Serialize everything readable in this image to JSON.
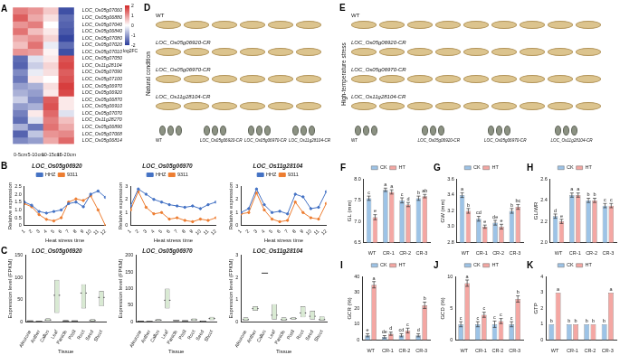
{
  "chart_data": [
    {
      "type": "heatmap",
      "panel": "A",
      "x": [
        "0-5cm",
        "5-10cm",
        "10-15cm",
        "15-20cm"
      ],
      "y": [
        "LOC_Os05g07060",
        "LOC_Os05g06880",
        "LOC_Os05g07040",
        "LOC_Os05g06840",
        "LOC_Os05g07080",
        "LOC_Os05g07020",
        "LOC_Os05g07010",
        "LOC_Os05g07050",
        "LOC_Os11g28104",
        "LOC_Os05g07090",
        "LOC_Os05g07100",
        "LOC_Os05g06970",
        "LOC_Os05g06920",
        "LOC_Os05g06870",
        "LOC_Os05g06910",
        "LOC_Os05g07070",
        "LOC_Os11g28270",
        "LOC_Os05g06890",
        "LOC_Os05g07068",
        "LOC_Os05g06814"
      ],
      "cells": [
        [
          1.2,
          1.0,
          0.5,
          -1.8
        ],
        [
          1.5,
          0.8,
          0.3,
          -1.5
        ],
        [
          1.0,
          1.2,
          0,
          -1.6
        ],
        [
          1.3,
          0.6,
          0.2,
          -1.7
        ],
        [
          0.8,
          1.0,
          0.4,
          -1.9
        ],
        [
          0.6,
          1.3,
          -0.2,
          -1.5
        ],
        [
          1.0,
          0.9,
          0.1,
          -1.8
        ],
        [
          -1.5,
          -0.3,
          0.2,
          1.6
        ],
        [
          -1.6,
          -0.5,
          0.4,
          1.7
        ],
        [
          -1.2,
          -0.2,
          0.3,
          1.5
        ],
        [
          -1.4,
          0.2,
          0,
          1.6
        ],
        [
          -1.0,
          -0.8,
          0.3,
          1.8
        ],
        [
          -0.8,
          -1.0,
          0.2,
          1.7
        ],
        [
          -0.5,
          -1.2,
          1.5,
          0.2
        ],
        [
          -1.0,
          -0.8,
          1.6,
          0.2
        ],
        [
          -1.3,
          0.2,
          1.4,
          -0.3
        ],
        [
          -1.5,
          -0.3,
          1.2,
          0.6
        ],
        [
          -0.8,
          -1.4,
          1.3,
          0.8
        ],
        [
          -1.6,
          -0.6,
          1.0,
          1.1
        ],
        [
          -1.2,
          -1.0,
          0.8,
          1.4
        ]
      ],
      "colorbar": {
        "range": [
          -2,
          2
        ],
        "ticks": [
          2,
          1,
          0,
          -1,
          -2
        ],
        "label": "log2FC"
      }
    },
    {
      "type": "line",
      "panel": "B",
      "title": "LOC_Os05g06920",
      "x_label": "Heat stress time",
      "y_label": "Relative expression",
      "x": [
        1,
        2,
        3,
        4,
        5,
        6,
        7,
        8,
        9,
        10,
        11,
        12
      ],
      "xlim": [
        1,
        12
      ],
      "xticks": [
        1,
        2,
        3,
        4,
        5,
        6,
        7,
        8,
        9,
        10,
        11,
        12
      ],
      "ylim": [
        0,
        2.5
      ],
      "yticks": [
        0,
        0.5,
        {
          "value": 1,
          "label": "1.0"
        },
        1.5,
        {
          "value": 2,
          "label": "2.0"
        },
        2.5
      ],
      "grid": false,
      "legend": "top",
      "series": [
        {
          "name": "HHZ",
          "color": "#4472c4",
          "marker": "circle",
          "values": [
            1.5,
            1.3,
            0.9,
            0.8,
            0.9,
            1.0,
            1.4,
            1.5,
            1.2,
            2.0,
            2.2,
            1.8
          ]
        },
        {
          "name": "9311",
          "color": "#ed7d31",
          "marker": "circle",
          "values": [
            1.4,
            1.2,
            0.7,
            0.4,
            0.3,
            0.5,
            1.5,
            1.7,
            1.6,
            1.9,
            1.0,
            0.0
          ]
        }
      ]
    },
    {
      "type": "line",
      "title": "LOC_Os05g06970",
      "x_label": "Heat stress time",
      "y_label": "Relative expression",
      "x": [
        1,
        2,
        3,
        4,
        5,
        6,
        7,
        8,
        9,
        10,
        11,
        12
      ],
      "xlim": [
        1,
        12
      ],
      "xticks": [
        1,
        2,
        3,
        4,
        5,
        6,
        7,
        8,
        9,
        10,
        11,
        12
      ],
      "ylim": [
        0,
        3
      ],
      "yticks": [
        0,
        1,
        2,
        3
      ],
      "grid": false,
      "legend": "top",
      "series": [
        {
          "name": "HHZ",
          "color": "#4472c4",
          "marker": "circle",
          "values": [
            1.5,
            2.8,
            2.4,
            2.0,
            1.8,
            1.6,
            1.5,
            1.4,
            1.5,
            1.3,
            1.6,
            1.8
          ]
        },
        {
          "name": "9311",
          "color": "#ed7d31",
          "marker": "circle",
          "values": [
            1.2,
            2.6,
            1.4,
            0.9,
            1.0,
            0.5,
            0.6,
            0.4,
            0.3,
            0.5,
            0.4,
            0.6
          ]
        }
      ]
    },
    {
      "type": "line",
      "title": "LOC_Os11g28104",
      "x_label": "Heat stress time",
      "y_label": "Relative expression",
      "x": [
        1,
        2,
        3,
        4,
        5,
        6,
        7,
        8,
        9,
        10,
        11,
        12
      ],
      "xlim": [
        1,
        12
      ],
      "xticks": [
        1,
        2,
        3,
        4,
        5,
        6,
        7,
        8,
        9,
        10,
        11,
        12
      ],
      "ylim": [
        0,
        3
      ],
      "yticks": [
        0,
        1,
        2,
        3
      ],
      "grid": false,
      "legend": "top",
      "series": [
        {
          "name": "HHZ",
          "color": "#4472c4",
          "marker": "circle",
          "values": [
            1.0,
            1.3,
            2.8,
            1.6,
            1.0,
            1.1,
            0.9,
            2.4,
            2.2,
            1.3,
            1.4,
            2.6
          ]
        },
        {
          "name": "9311",
          "color": "#ed7d31",
          "marker": "circle",
          "values": [
            0.9,
            1.0,
            2.5,
            1.2,
            0.5,
            0.3,
            0.4,
            1.8,
            1.0,
            0.6,
            0.5,
            1.7
          ]
        }
      ]
    },
    {
      "type": "boxplot",
      "panel": "C",
      "title": "LOC_Os05g06920",
      "x_label": "Tissue",
      "y_label": "Expression level (FPKM)",
      "categories": [
        "Aleurone",
        "Anther",
        "Callus",
        "Leaf",
        "Panicle",
        "Pistil",
        "Root",
        "Seed",
        "Shoot"
      ],
      "q1": [
        1,
        0,
        2,
        20,
        1,
        1,
        30,
        1,
        35
      ],
      "median": [
        2,
        1,
        4,
        60,
        2,
        2,
        65,
        3,
        55
      ],
      "q3": [
        3,
        2,
        8,
        95,
        4,
        3,
        85,
        6,
        70
      ],
      "ylim": [
        0,
        150
      ],
      "yticks": [
        0,
        50,
        100,
        150
      ],
      "grid": false,
      "color": "#d9ead3"
    },
    {
      "type": "boxplot",
      "title": "LOC_Os05g06970",
      "x_label": "Tissue",
      "y_label": "Expression level (FPKM)",
      "categories": [
        "Aleurone",
        "Anther",
        "Callus",
        "Leaf",
        "Panicle",
        "Pistil",
        "Root",
        "Seed",
        "Shoot"
      ],
      "q1": [
        1,
        0,
        3,
        40,
        2,
        2,
        3,
        1,
        5
      ],
      "median": [
        2,
        1,
        5,
        65,
        4,
        3,
        6,
        2,
        10
      ],
      "q3": [
        3,
        2,
        8,
        100,
        6,
        5,
        10,
        4,
        15
      ],
      "ylim": [
        0,
        200
      ],
      "yticks": [
        0,
        50,
        100,
        150,
        200
      ],
      "grid": false,
      "color": "#d9ead3"
    },
    {
      "type": "boxplot",
      "title": "LOC_Os11g28104",
      "x_label": "Tissue",
      "y_label": "Expression level (FPKM)",
      "categories": [
        "Aleurone",
        "Anther",
        "Callus",
        "Leaf",
        "Panicle",
        "Pistil",
        "Root",
        "Seed",
        "Shoot"
      ],
      "q1": [
        0.05,
        0.5,
        2.2,
        0.1,
        0.05,
        0.1,
        0.2,
        0.1,
        0.05
      ],
      "median": [
        0.1,
        0.6,
        2.2,
        0.3,
        0.1,
        0.15,
        0.4,
        0.25,
        0.1
      ],
      "q3": [
        0.2,
        0.7,
        2.2,
        0.8,
        0.2,
        0.2,
        0.7,
        0.5,
        0.25
      ],
      "ylim": [
        0,
        3
      ],
      "yticks": [
        0,
        1,
        2,
        3
      ],
      "grid": false,
      "color": "#d9ead3"
    },
    {
      "type": "bar",
      "panel": "F",
      "y_label": "GL (mm)",
      "categories": [
        "WT",
        "CR-1",
        "CR-2",
        "CR-3"
      ],
      "ylim": [
        6.5,
        8
      ],
      "yticks": [
        6.5,
        {
          "value": 7,
          "label": "7.0"
        },
        7.5,
        {
          "value": 8,
          "label": "8.0"
        }
      ],
      "grid": false,
      "legend": "top",
      "series": [
        {
          "name": "CK",
          "color": "#9dc3e6",
          "values": [
            7.55,
            7.75,
            7.5,
            7.55
          ],
          "errors": [
            0.05,
            0.04,
            0.06,
            0.05
          ],
          "annotations": [
            "c",
            "a",
            "c",
            "b"
          ]
        },
        {
          "name": "HT",
          "color": "#f4a7a3",
          "values": [
            7.1,
            7.7,
            7.4,
            7.6
          ],
          "errors": [
            0.06,
            0.05,
            0.05,
            0.04
          ],
          "annotations": [
            "e",
            "a",
            "d",
            "ab"
          ]
        }
      ]
    },
    {
      "type": "bar",
      "panel": "G",
      "y_label": "GW (mm)",
      "categories": [
        "WT",
        "CR-1",
        "CR-2",
        "CR-3"
      ],
      "ylim": [
        2.8,
        3.6
      ],
      "yticks": [
        2.8,
        {
          "value": 3,
          "label": "3.0"
        },
        3.2,
        3.4,
        3.6
      ],
      "grid": false,
      "legend": "top",
      "series": [
        {
          "name": "CK",
          "color": "#9dc3e6",
          "values": [
            3.4,
            3.1,
            3.05,
            3.2
          ],
          "errors": [
            0.03,
            0.03,
            0.03,
            0.03
          ],
          "annotations": [
            "a",
            "cd",
            "de",
            "b"
          ]
        },
        {
          "name": "HT",
          "color": "#f4a7a3",
          "values": [
            3.2,
            3.0,
            3.0,
            3.25
          ],
          "errors": [
            0.03,
            0.02,
            0.03,
            0.03
          ],
          "annotations": [
            "b",
            "e",
            "e",
            "bc"
          ]
        }
      ]
    },
    {
      "type": "bar",
      "panel": "H",
      "y_label": "GL/WR",
      "categories": [
        "WT",
        "CR-1",
        "CR-2",
        "CR-3"
      ],
      "ylim": [
        2,
        2.6
      ],
      "yticks": [
        {
          "value": 2,
          "label": "2.0"
        },
        2.2,
        2.4,
        2.6
      ],
      "grid": false,
      "legend": "top",
      "series": [
        {
          "name": "CK",
          "color": "#9dc3e6",
          "values": [
            2.25,
            2.45,
            2.4,
            2.35
          ],
          "errors": [
            0.02,
            0.02,
            0.02,
            0.02
          ],
          "annotations": [
            "d",
            "a",
            "b",
            "c"
          ]
        },
        {
          "name": "HT",
          "color": "#f4a7a3",
          "values": [
            2.2,
            2.45,
            2.4,
            2.35
          ],
          "errors": [
            0.02,
            0.02,
            0.02,
            0.02
          ],
          "annotations": [
            "e",
            "a",
            "b",
            "c"
          ]
        }
      ]
    },
    {
      "type": "bar",
      "panel": "I",
      "y_label": "GCR (%)",
      "categories": [
        "WT",
        "CR-1",
        "CR-2",
        "CR-3"
      ],
      "ylim": [
        0,
        40
      ],
      "yticks": [
        0,
        10,
        20,
        30,
        40
      ],
      "grid": false,
      "legend": "top",
      "series": [
        {
          "name": "CK",
          "color": "#9dc3e6",
          "values": [
            3,
            2,
            3,
            3
          ],
          "errors": [
            1,
            0.8,
            1,
            1
          ],
          "annotations": [
            "e",
            "de",
            "cd",
            "d"
          ]
        },
        {
          "name": "HT",
          "color": "#f4a7a3",
          "values": [
            35,
            4,
            6,
            22
          ],
          "errors": [
            2,
            1,
            1.5,
            2
          ],
          "annotations": [
            "a",
            "d",
            "c",
            "b"
          ]
        }
      ]
    },
    {
      "type": "bar",
      "panel": "J",
      "y_label": "GCD (%)",
      "categories": [
        "WT",
        "CR-1",
        "CR-2",
        "CR-3"
      ],
      "ylim": [
        0,
        10
      ],
      "yticks": [
        0,
        5,
        10
      ],
      "grid": false,
      "legend": "top",
      "series": [
        {
          "name": "CK",
          "color": "#9dc3e6",
          "values": [
            2.5,
            2.5,
            2.5,
            2.5
          ],
          "errors": [
            0.4,
            0.4,
            0.5,
            0.4
          ],
          "annotations": [
            "c",
            "c",
            "c",
            "c"
          ]
        },
        {
          "name": "HT",
          "color": "#f4a7a3",
          "values": [
            9,
            4,
            3,
            6.5
          ],
          "errors": [
            0.5,
            0.4,
            0.4,
            0.5
          ],
          "annotations": [
            "a",
            "c",
            "c",
            "b"
          ]
        }
      ]
    },
    {
      "type": "bar",
      "panel": "K",
      "y_label": "GTP",
      "categories": [
        "WT",
        "CR-1",
        "CR-2",
        "CR-3"
      ],
      "ylim": [
        0,
        4
      ],
      "yticks": [
        0,
        1,
        2,
        3,
        4
      ],
      "grid": false,
      "legend": "top",
      "series": [
        {
          "name": "CK",
          "color": "#9dc3e6",
          "values": [
            1,
            1,
            1,
            1
          ],
          "annotations": [
            "b",
            "b",
            "b",
            "b"
          ]
        },
        {
          "name": "HT",
          "color": "#f4a7a3",
          "values": [
            3,
            1,
            1,
            3
          ],
          "annotations": [
            "a",
            "b",
            "b",
            "a"
          ]
        }
      ]
    }
  ],
  "photos": [
    {
      "panel": "D",
      "condition": "Natural condition",
      "labels": [
        "WT",
        "LOC_Os05g06920-CR",
        "LOC_Os05g06970-CR",
        "LOC_Os11g28104-CR"
      ]
    },
    {
      "panel": "E",
      "condition": "High-temperature stress",
      "labels": [
        "WT",
        "LOC_Os05g06920-CR",
        "LOC_Os05g06970-CR",
        "LOC_Os11g28104-CR"
      ]
    }
  ]
}
